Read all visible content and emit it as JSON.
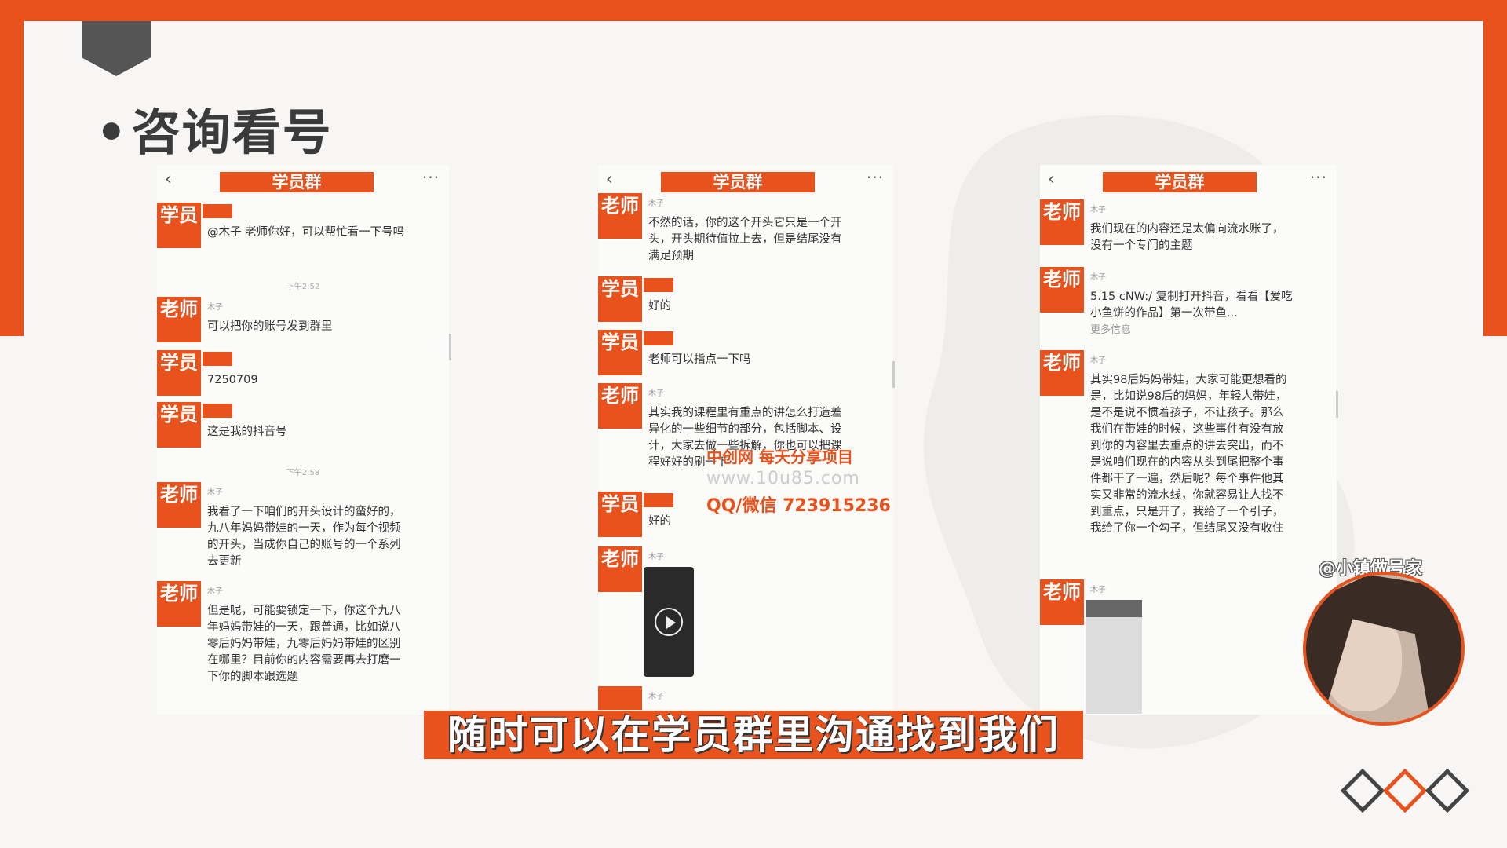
{
  "slide": {
    "title": "咨询看号",
    "title_bullet": "•"
  },
  "colors": {
    "accent": "#e8531d",
    "background": "#f7f6f4",
    "dark": "#3b3b3b"
  },
  "chat_panels": [
    {
      "group_name": "学员群",
      "messages": [
        {
          "role": "学员",
          "sender": "",
          "text": "@木子 老师你好，可以帮忙看一下号吗"
        },
        {
          "time": "下午2:52"
        },
        {
          "role": "老师",
          "sender": "木子",
          "text": "可以把你的账号发到群里"
        },
        {
          "role": "学员",
          "sender": "",
          "text": "7250709"
        },
        {
          "role": "学员",
          "sender": "",
          "text": "这是我的抖音号"
        },
        {
          "time": "下午2:58"
        },
        {
          "role": "老师",
          "sender": "木子",
          "text": "我看了一下咱们的开头设计的蛮好的，九八年妈妈带娃的一天，作为每个视频的开头，当成你自己的账号的一个系列去更新"
        },
        {
          "role": "老师",
          "sender": "木子",
          "text": "但是呢，可能要锁定一下，你这个九八年妈妈带娃的一天，跟普通，比如说八零后妈妈带娃，九零后妈妈带娃的区别在哪里？目前你的内容需要再去打磨一下你的脚本跟选题"
        }
      ]
    },
    {
      "group_name": "学员群",
      "messages": [
        {
          "role": "老师",
          "sender": "木子",
          "text": "不然的话，你的这个开头它只是一个开头，开头期待值拉上去，但是结尾没有满足预期"
        },
        {
          "role": "学员",
          "sender": "",
          "text": "好的"
        },
        {
          "role": "学员",
          "sender": "",
          "text": "老师可以指点一下吗"
        },
        {
          "role": "老师",
          "sender": "木子",
          "text": "其实我的课程里有重点的讲怎么打造差异化的一些细节的部分，包括脚本、设计，大家去做一些拆解，你也可以把课程好好的刷一下"
        },
        {
          "role": "学员",
          "sender": "",
          "text": "好的"
        },
        {
          "role": "老师",
          "sender": "木子",
          "attachment": "video"
        },
        {
          "role": "",
          "sender": "木子",
          "text": ""
        }
      ]
    },
    {
      "group_name": "学员群",
      "messages": [
        {
          "role": "老师",
          "sender": "木子",
          "text": "我们现在的内容还是太偏向流水账了，没有一个专门的主题"
        },
        {
          "role": "老师",
          "sender": "木子",
          "text": "5.15 cNW:/ 复制打开抖音，看看【爱吃小鱼饼的作品】第一次带鱼...",
          "more": "更多信息"
        },
        {
          "role": "老师",
          "sender": "木子",
          "text": "其实98后妈妈带娃，大家可能更想看的是，比如说98后的妈妈，年轻人带娃，是不是说不惯着孩子，不让孩子。那么我们在带娃的时候，这些事件有没有放到你的内容里去重点的讲去突出，而不是说咱们现在的内容从头到尾把整个事件都干了一遍，然后呢？每个事件他其实又非常的流水线，你就容易让人找不到重点，只是开了，我给了一个引子，我给了你一个勾子，但结尾又没有收住"
        },
        {
          "role": "老师",
          "sender": "木子",
          "attachment": "image"
        }
      ]
    }
  ],
  "overlay_watermark": {
    "line1": "中创网 每天分享项目",
    "line2": "www.10u85.com",
    "line3": "QQ/微信 723915236"
  },
  "subtitle": "随时可以在学员群里沟通找到我们",
  "presenter": {
    "handle": "@小镇做号家"
  }
}
